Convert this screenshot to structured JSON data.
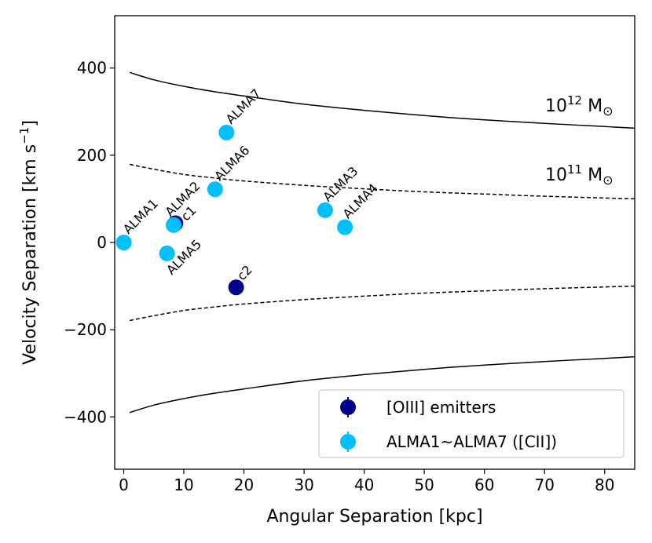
{
  "chart_data": {
    "type": "scatter",
    "xlabel": "Angular Separation [kpc]",
    "ylabel_main": "Velocity Separation [km s",
    "ylabel_sup": "−1",
    "ylabel_close": "]",
    "xlim": [
      -1.5,
      85
    ],
    "ylim": [
      -520,
      520
    ],
    "xticks": [
      0,
      10,
      20,
      30,
      40,
      50,
      60,
      70,
      80
    ],
    "xtick_labels": [
      "0",
      "10",
      "20",
      "30",
      "40",
      "50",
      "60",
      "70",
      "80"
    ],
    "yticks": [
      -400,
      -200,
      0,
      200,
      400
    ],
    "ytick_labels": [
      "−400",
      "−200",
      "0",
      "200",
      "400"
    ],
    "series": [
      {
        "name": "[OIII] emitters",
        "color": "#00008b",
        "points": [
          {
            "label": "c1",
            "x": 8.6,
            "y": 44
          },
          {
            "label": "c2",
            "x": 18.7,
            "y": -103
          }
        ]
      },
      {
        "name": "ALMA1~ALMA7 ([CII])",
        "color": "#00bfff",
        "points": [
          {
            "label": "ALMA1",
            "x": 0.0,
            "y": 0
          },
          {
            "label": "ALMA2",
            "x": 8.3,
            "y": 40
          },
          {
            "label": "ALMA3",
            "x": 33.5,
            "y": 74
          },
          {
            "label": "ALMA4",
            "x": 36.8,
            "y": 35
          },
          {
            "label": "ALMA5",
            "x": 7.2,
            "y": -25
          },
          {
            "label": "ALMA6",
            "x": 15.2,
            "y": 122
          },
          {
            "label": "ALMA7",
            "x": 17.1,
            "y": 252
          }
        ]
      }
    ],
    "curves": [
      {
        "name": "1e12-upper",
        "style": "solid",
        "x": [
          1,
          5,
          10,
          15,
          20,
          30,
          40,
          50,
          60,
          70,
          80,
          85
        ],
        "y": [
          390,
          373,
          358,
          346,
          336,
          317,
          303,
          291,
          281,
          273,
          266,
          262
        ]
      },
      {
        "name": "1e12-lower",
        "style": "solid",
        "x": [
          1,
          5,
          10,
          15,
          20,
          30,
          40,
          50,
          60,
          70,
          80,
          85
        ],
        "y": [
          -390,
          -373,
          -358,
          -346,
          -336,
          -317,
          -303,
          -291,
          -281,
          -273,
          -266,
          -262
        ]
      },
      {
        "name": "1e11-upper",
        "style": "dashed",
        "x": [
          1,
          5,
          10,
          15,
          20,
          30,
          40,
          50,
          60,
          70,
          80,
          85
        ],
        "y": [
          179,
          168,
          156,
          148,
          141,
          131,
          123,
          116,
          111,
          106,
          102,
          100
        ]
      },
      {
        "name": "1e11-lower",
        "style": "dashed",
        "x": [
          1,
          5,
          10,
          15,
          20,
          30,
          40,
          50,
          60,
          70,
          80,
          85
        ],
        "y": [
          -179,
          -168,
          -156,
          -148,
          -141,
          -131,
          -123,
          -116,
          -111,
          -106,
          -102,
          -100
        ]
      }
    ],
    "annotations": {
      "mass12_base": "10",
      "mass12_exp": "12",
      "mass12_unit": " M",
      "mass11_base": "10",
      "mass11_exp": "11",
      "mass11_unit": " M",
      "sun_symbol": "⊙"
    },
    "legend_position": "lower-right"
  }
}
